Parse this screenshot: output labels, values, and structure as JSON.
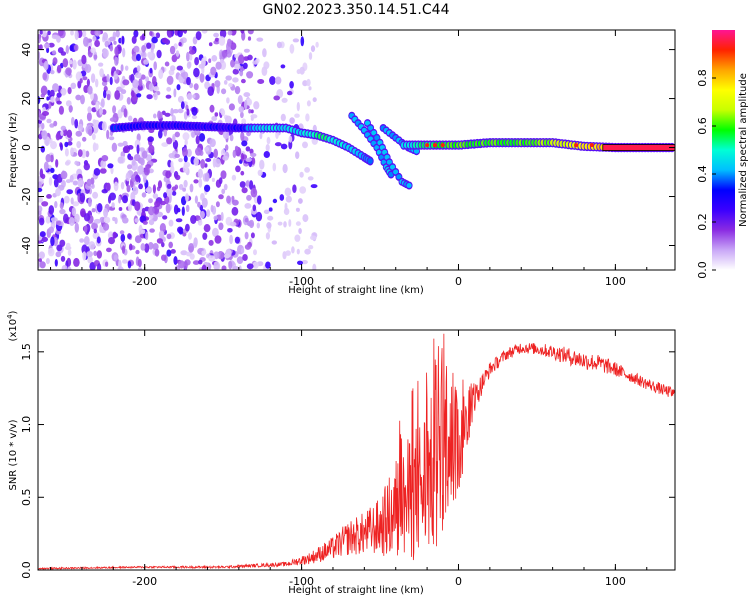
{
  "title": "GN02.2023.350.14.51.C44",
  "chart_data": [
    {
      "type": "heatmap",
      "xlabel": "Height of straight line (km)",
      "ylabel": "Frequency (Hz)",
      "xlim": [
        -268,
        138
      ],
      "ylim": [
        -50,
        48
      ],
      "xticks": [
        -200,
        -100,
        0,
        100
      ],
      "yticks": [
        -40,
        -20,
        0,
        20,
        40
      ],
      "colorbar": {
        "label": "Normalized spectral amplitude",
        "range": [
          0,
          1
        ],
        "ticks": [
          0.0,
          0.2,
          0.4,
          0.6,
          0.8
        ],
        "tick_labels": [
          "0.0",
          "0.2",
          "0.4",
          "0.6",
          "0.8"
        ],
        "colormap": [
          "#ffffff",
          "#c9a7f7",
          "#8a2be2",
          "#3b00ff",
          "#0000ff",
          "#00bfff",
          "#00ffd5",
          "#00ff00",
          "#c8ff00",
          "#ffff00",
          "#ffa500",
          "#ff2200",
          "#ff1493"
        ]
      },
      "features": {
        "noise_region_x": [
          -268,
          -100
        ],
        "main_track": [
          {
            "x": -220,
            "y": 8,
            "amp": 0.35
          },
          {
            "x": -200,
            "y": 9,
            "amp": 0.3
          },
          {
            "x": -180,
            "y": 9,
            "amp": 0.3
          },
          {
            "x": -140,
            "y": 8,
            "amp": 0.3
          },
          {
            "x": -130,
            "y": 8,
            "amp": 0.45
          },
          {
            "x": -110,
            "y": 8,
            "amp": 0.45
          },
          {
            "x": -100,
            "y": 6,
            "amp": 0.45
          },
          {
            "x": -90,
            "y": 5,
            "amp": 0.55
          },
          {
            "x": -80,
            "y": 3,
            "amp": 0.5
          },
          {
            "x": -70,
            "y": 0,
            "amp": 0.45
          },
          {
            "x": -60,
            "y": -4,
            "amp": 0.4
          },
          {
            "x": -55,
            "y": -6,
            "amp": 0.35
          }
        ],
        "branch_tracks": [
          [
            {
              "x": -68,
              "y": 13
            },
            {
              "x": -60,
              "y": 7
            },
            {
              "x": -52,
              "y": 0
            },
            {
              "x": -46,
              "y": -8
            },
            {
              "x": -42,
              "y": -12
            }
          ],
          [
            {
              "x": -58,
              "y": 10
            },
            {
              "x": -50,
              "y": 2
            },
            {
              "x": -44,
              "y": -6
            },
            {
              "x": -36,
              "y": -14
            },
            {
              "x": -30,
              "y": -16
            }
          ],
          [
            {
              "x": -48,
              "y": 8
            },
            {
              "x": -40,
              "y": 4
            },
            {
              "x": -32,
              "y": 0
            },
            {
              "x": -25,
              "y": -2
            }
          ]
        ],
        "steady_track": [
          {
            "x": -35,
            "y": 1,
            "amp": 0.45
          },
          {
            "x": -20,
            "y": 1,
            "amp": 0.55
          },
          {
            "x": 0,
            "y": 1,
            "amp": 0.6
          },
          {
            "x": 20,
            "y": 2,
            "amp": 0.6
          },
          {
            "x": 40,
            "y": 2,
            "amp": 0.6
          },
          {
            "x": 60,
            "y": 2,
            "amp": 0.65
          },
          {
            "x": 80,
            "y": 0.5,
            "amp": 0.75
          },
          {
            "x": 100,
            "y": 0,
            "amp": 0.85
          },
          {
            "x": 138,
            "y": 0,
            "amp": 0.95
          }
        ]
      }
    },
    {
      "type": "line",
      "xlabel": "Height of straight line (km)",
      "ylabel": "SNR (10 * v/v)",
      "y_multiplier": "(x10",
      "y_multiplier_exp": "4",
      "y_multiplier_close": ")",
      "xlim": [
        -268,
        138
      ],
      "ylim": [
        0,
        1.65
      ],
      "xticks": [
        -200,
        -100,
        0,
        100
      ],
      "yticks": [
        0.0,
        0.5,
        1.0,
        1.5
      ],
      "ytick_labels": [
        "0.0",
        "0.5",
        "1.0",
        "1.5"
      ],
      "color": "#ee2222",
      "envelope": {
        "x": [
          -268,
          -200,
          -150,
          -110,
          -95,
          -80,
          -70,
          -60,
          -50,
          -40,
          -30,
          -20,
          -10,
          -5,
          0,
          5,
          10,
          20,
          30,
          40,
          50,
          60,
          70,
          80,
          90,
          100,
          110,
          120,
          130,
          138
        ],
        "y": [
          0.01,
          0.02,
          0.02,
          0.04,
          0.08,
          0.15,
          0.22,
          0.25,
          0.3,
          0.4,
          0.5,
          0.62,
          0.72,
          0.78,
          0.82,
          1.0,
          1.18,
          1.38,
          1.48,
          1.53,
          1.52,
          1.5,
          1.47,
          1.44,
          1.42,
          1.38,
          1.33,
          1.28,
          1.24,
          1.21
        ]
      },
      "noise": {
        "x": [
          -268,
          -200,
          -150,
          -110,
          -95,
          -80,
          -70,
          -60,
          -50,
          -40,
          -30,
          -20,
          -10,
          -5,
          0,
          5,
          10,
          20,
          30,
          40,
          50,
          60,
          70,
          80,
          90,
          100,
          110,
          120,
          130,
          138
        ],
        "y": [
          0.005,
          0.006,
          0.008,
          0.015,
          0.04,
          0.08,
          0.12,
          0.15,
          0.2,
          0.35,
          0.45,
          0.55,
          0.55,
          0.45,
          0.35,
          0.2,
          0.1,
          0.05,
          0.04,
          0.04,
          0.04,
          0.05,
          0.06,
          0.06,
          0.06,
          0.05,
          0.04,
          0.04,
          0.04,
          0.04
        ]
      }
    }
  ]
}
